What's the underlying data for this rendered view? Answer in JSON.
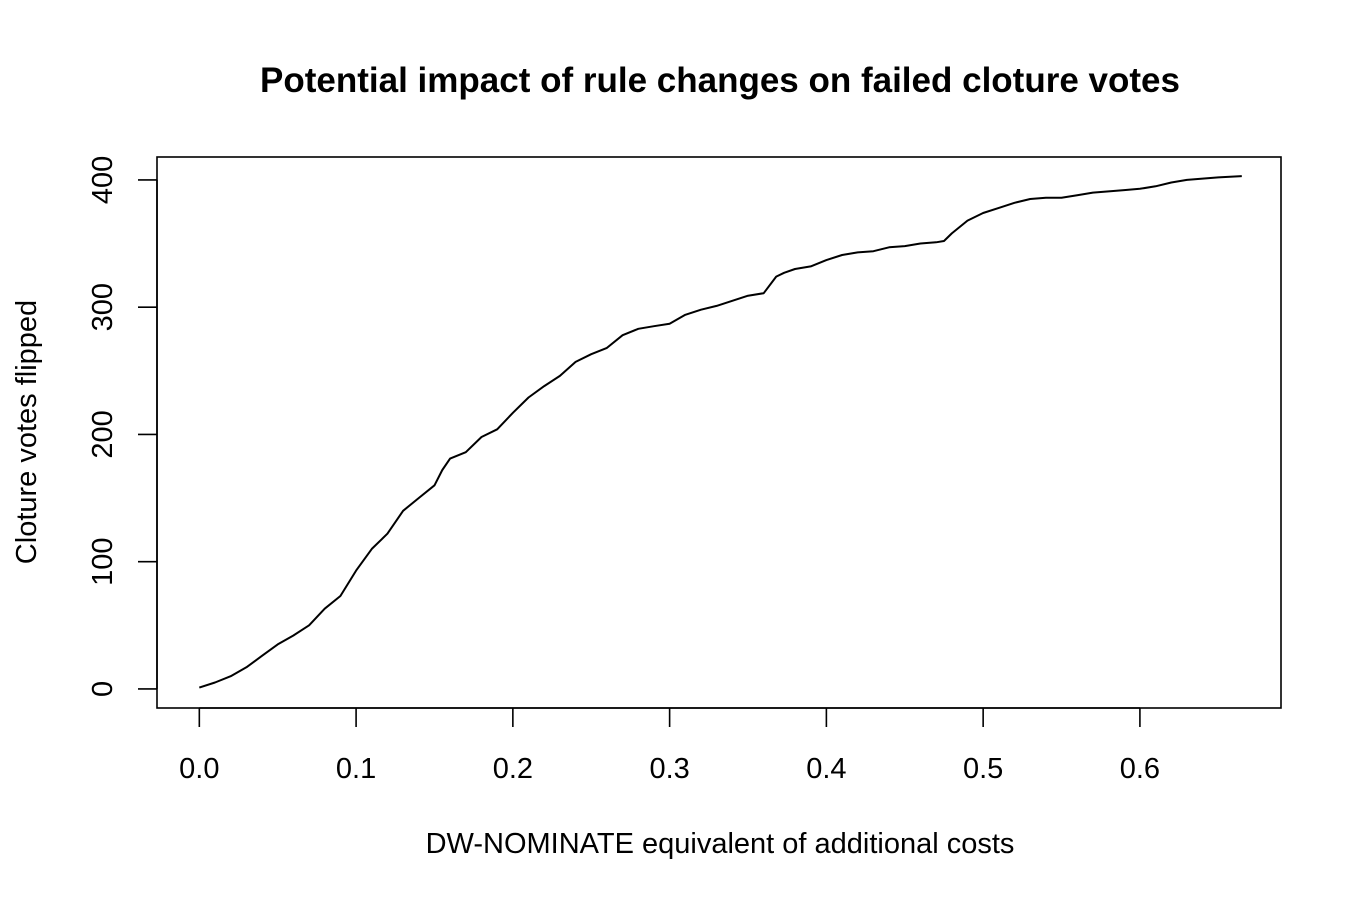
{
  "chart_data": {
    "type": "line",
    "title": "Potential impact of rule changes on failed cloture votes",
    "xlabel": "DW-NOMINATE equivalent of additional costs",
    "ylabel": "Cloture votes flipped",
    "xlim": [
      -0.027,
      0.69
    ],
    "ylim": [
      -15,
      418
    ],
    "xticks": [
      0.0,
      0.1,
      0.2,
      0.3,
      0.4,
      0.5,
      0.6
    ],
    "xtick_labels": [
      "0.0",
      "0.1",
      "0.2",
      "0.3",
      "0.4",
      "0.5",
      "0.6"
    ],
    "yticks": [
      0,
      100,
      200,
      300,
      400
    ],
    "ytick_labels": [
      "0",
      "100",
      "200",
      "300",
      "400"
    ],
    "grid": false,
    "legend": "none",
    "line_color": "#000000",
    "series": [
      {
        "x": [
          0.0,
          0.01,
          0.02,
          0.03,
          0.04,
          0.05,
          0.06,
          0.07,
          0.08,
          0.09,
          0.1,
          0.11,
          0.12,
          0.13,
          0.14,
          0.15,
          0.155,
          0.16,
          0.17,
          0.18,
          0.19,
          0.2,
          0.21,
          0.22,
          0.23,
          0.24,
          0.25,
          0.26,
          0.27,
          0.28,
          0.29,
          0.3,
          0.31,
          0.32,
          0.33,
          0.34,
          0.35,
          0.36,
          0.368,
          0.373,
          0.38,
          0.39,
          0.4,
          0.41,
          0.42,
          0.43,
          0.44,
          0.45,
          0.46,
          0.47,
          0.475,
          0.48,
          0.49,
          0.5,
          0.51,
          0.52,
          0.53,
          0.54,
          0.55,
          0.56,
          0.57,
          0.58,
          0.59,
          0.6,
          0.61,
          0.62,
          0.63,
          0.64,
          0.65,
          0.665
        ],
        "y": [
          1,
          5,
          10,
          17,
          26,
          35,
          42,
          50,
          63,
          73,
          93,
          110,
          122,
          140,
          150,
          160,
          172,
          181,
          186,
          198,
          204,
          217,
          229,
          238,
          246,
          257,
          263,
          268,
          278,
          283,
          285,
          287,
          294,
          298,
          301,
          305,
          309,
          311,
          324,
          327,
          330,
          332,
          337,
          341,
          343,
          344,
          347,
          348,
          350,
          351,
          352,
          358,
          368,
          374,
          378,
          382,
          385,
          386,
          386,
          388,
          390,
          391,
          392,
          393,
          395,
          398,
          400,
          401,
          402,
          403
        ]
      }
    ]
  }
}
